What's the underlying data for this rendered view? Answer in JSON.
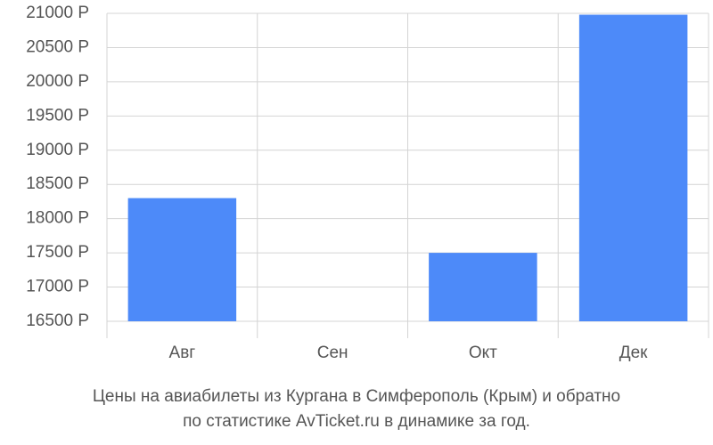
{
  "chart_data": {
    "type": "bar",
    "title": [
      "Цены на авиабилеты из Кургана в Симферополь (Крым) и обратно",
      "по статистике AvTicket.ru в динамике за год."
    ],
    "categories": [
      "Авг",
      "Сен",
      "Окт",
      "Дек"
    ],
    "values": [
      18300,
      null,
      17500,
      20980
    ],
    "color": "#4d8af9",
    "ylim": [
      16500,
      21000
    ],
    "yticks": [
      {
        "value": 16500,
        "label": "16500 Р"
      },
      {
        "value": 17000,
        "label": "17000 Р"
      },
      {
        "value": 17500,
        "label": "17500 Р"
      },
      {
        "value": 18000,
        "label": "18000 Р"
      },
      {
        "value": 18500,
        "label": "18500 Р"
      },
      {
        "value": 19000,
        "label": "19000 Р"
      },
      {
        "value": 19500,
        "label": "19500 Р"
      },
      {
        "value": 20000,
        "label": "20000 Р"
      },
      {
        "value": 20500,
        "label": "20500 Р"
      },
      {
        "value": 21000,
        "label": "21000 Р"
      }
    ],
    "grid": true
  }
}
